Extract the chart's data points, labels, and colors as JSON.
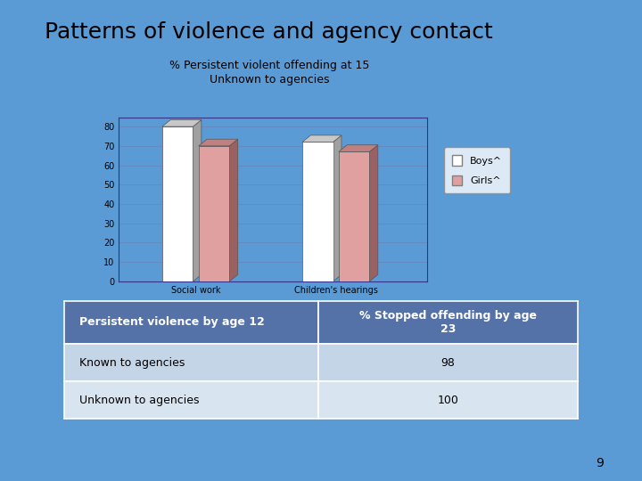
{
  "title": "Patterns of violence and agency contact",
  "chart_subtitle": "% Persistent violent offending at 15\nUnknown to agencies",
  "background_color": "#5B9BD5",
  "categories": [
    "Social work",
    "Children's hearings"
  ],
  "boys_values": [
    80,
    72
  ],
  "girls_values": [
    70,
    67
  ],
  "bar_color_boys": "#FFFFFF",
  "bar_color_girls": "#E0A0A0",
  "bar_shadow_boys": "#A0A0A0",
  "bar_shadow_girls": "#9B6060",
  "bar_top_boys": "#C8C8C8",
  "bar_top_girls": "#C08080",
  "ylim_max": 80,
  "yticks": [
    0,
    10,
    20,
    30,
    40,
    50,
    60,
    70,
    80
  ],
  "legend_boys": "Boys^",
  "legend_girls": "Girls^",
  "table_header_col1": "Persistent violence by age 12",
  "table_header_col2": "% Stopped offending by age\n23",
  "table_row1_col1": "Known to agencies",
  "table_row1_col2": "98",
  "table_row2_col1": "Unknown to agencies",
  "table_row2_col2": "100",
  "table_header_bg": "#5572A8",
  "table_row_bg": "#C5D5E8",
  "table_row_alt_bg": "#D8E5F0",
  "page_number": "9",
  "title_fontsize": 18,
  "subtitle_fontsize": 9,
  "axis_fontsize": 7,
  "legend_fontsize": 8,
  "table_header_fontsize": 9,
  "table_body_fontsize": 9
}
